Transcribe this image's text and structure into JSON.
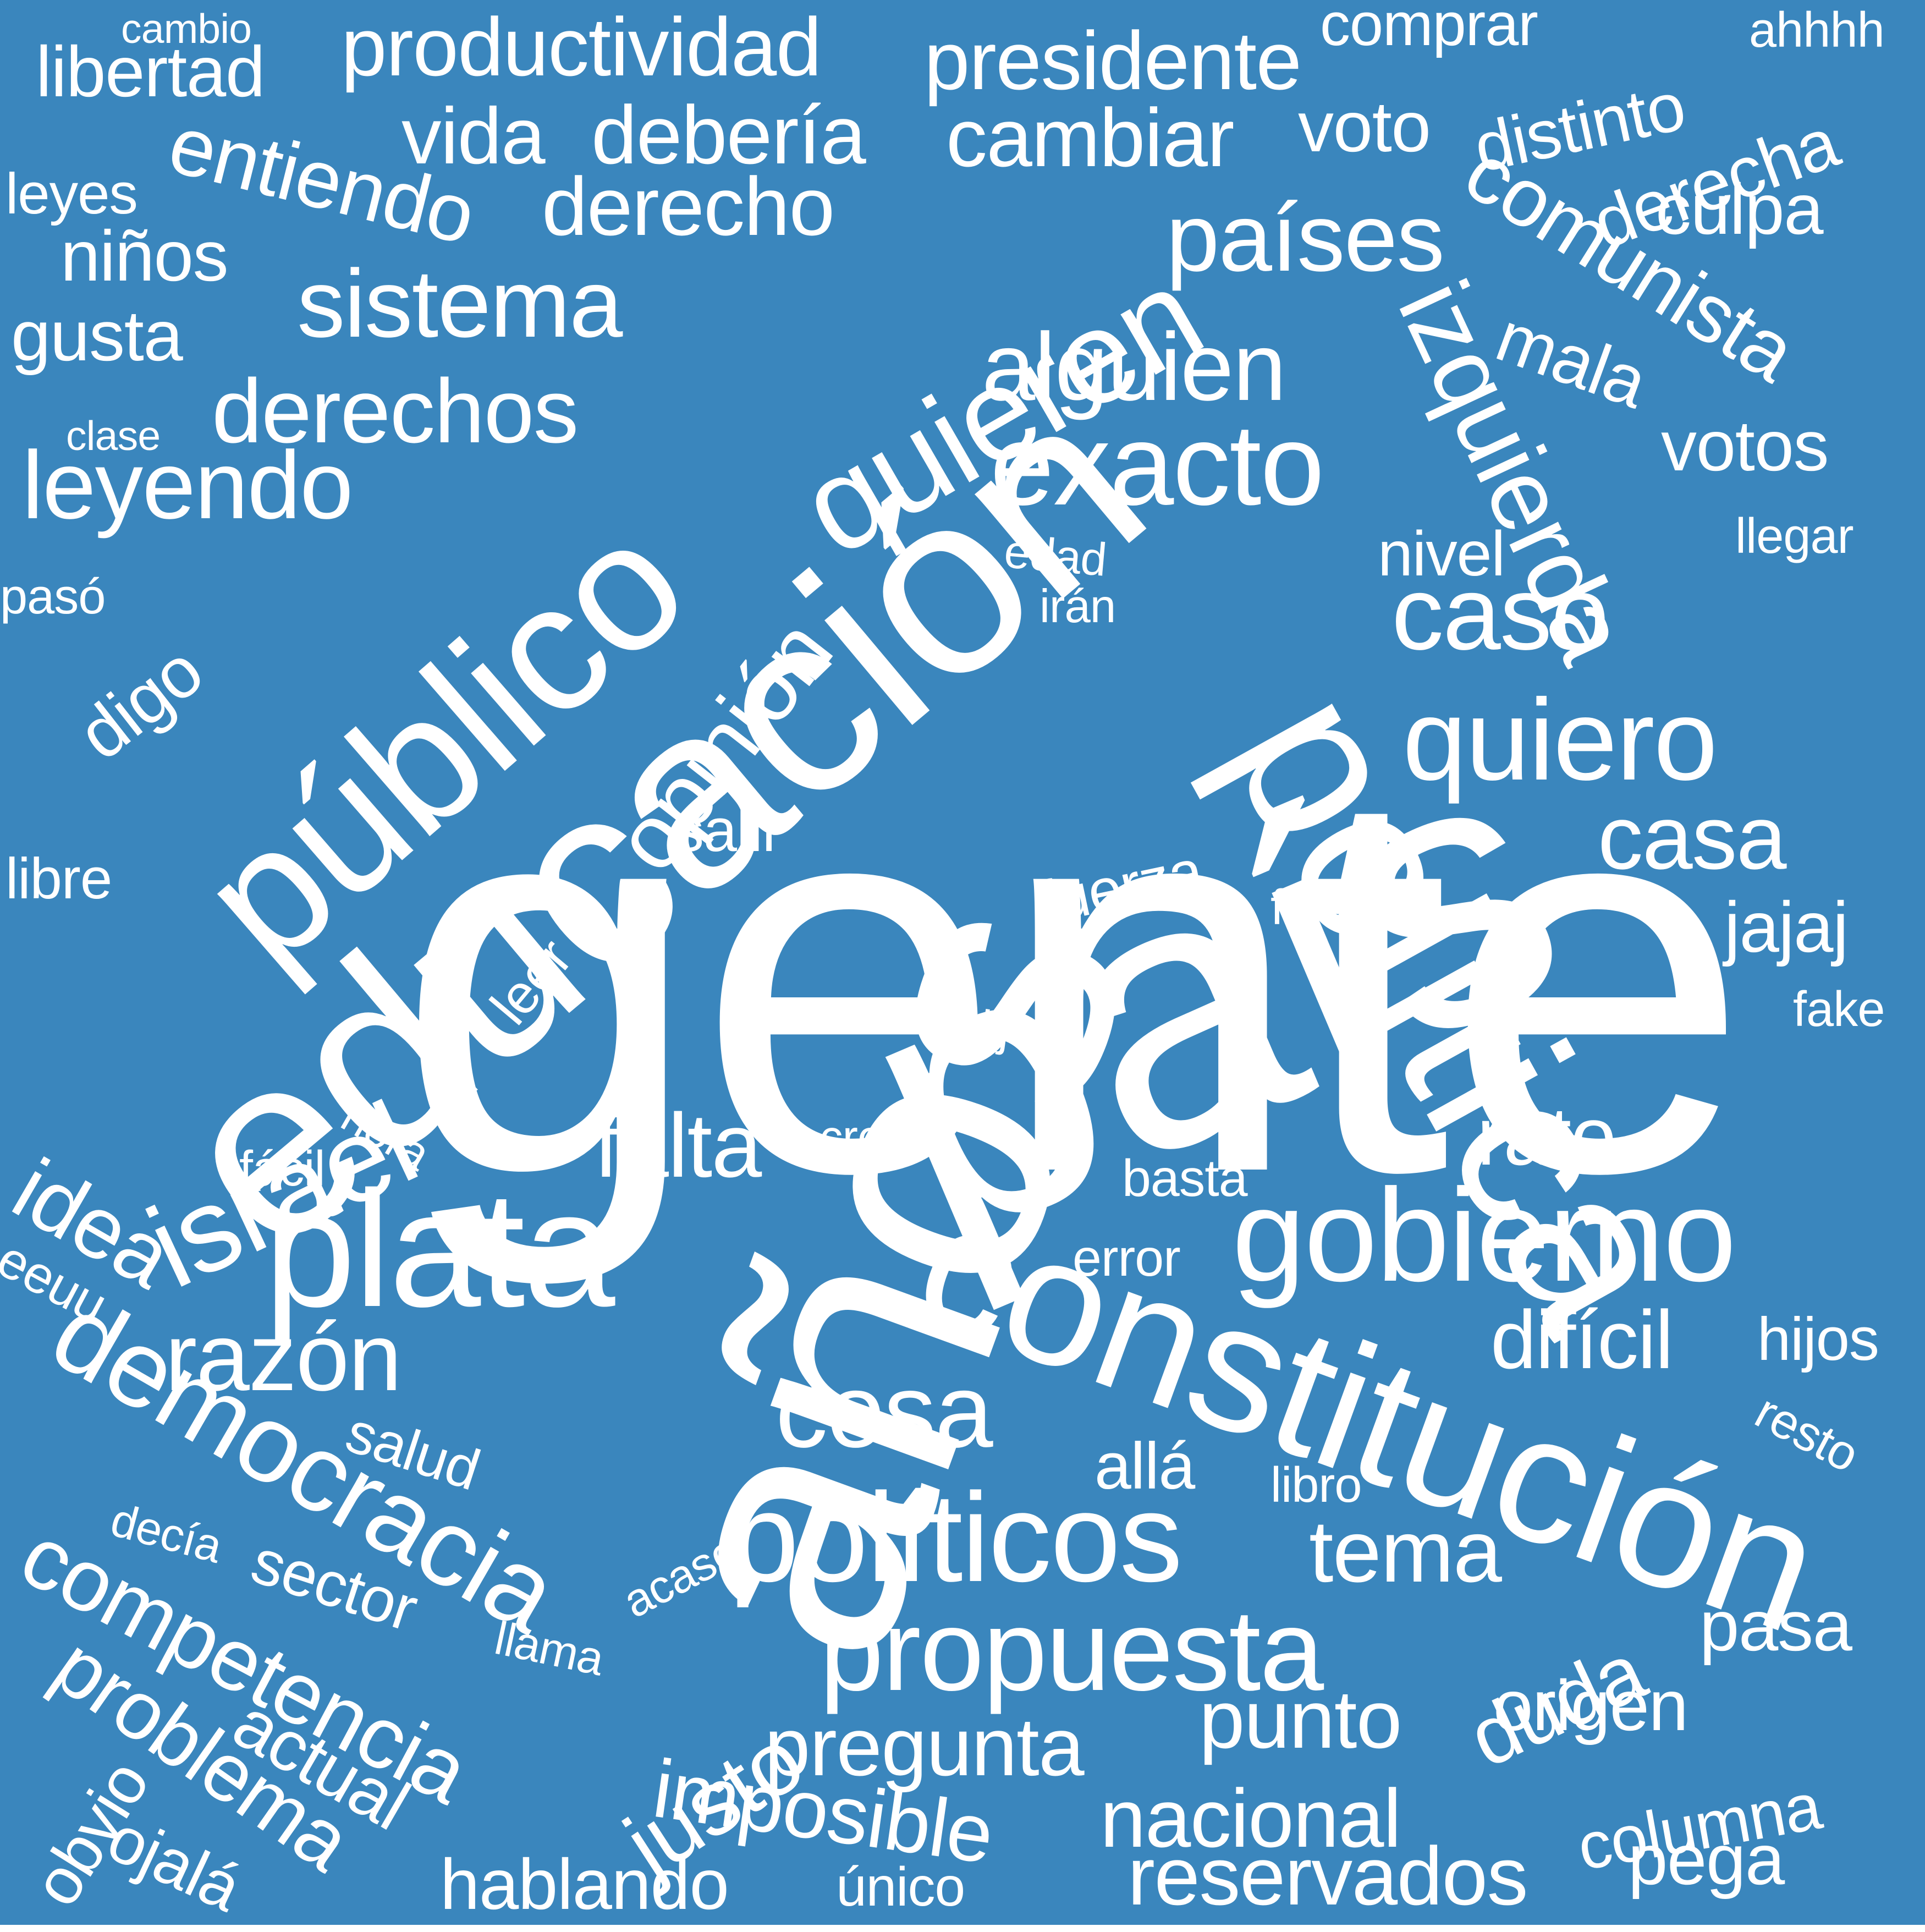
{
  "colors": {
    "background": "#3a86bd",
    "text": "#ffffff"
  },
  "words": [
    {
      "text": "gente"
    },
    {
      "text": "país"
    },
    {
      "text": "años"
    },
    {
      "text": "educación"
    },
    {
      "text": "política"
    },
    {
      "text": "público"
    },
    {
      "text": "constitución"
    },
    {
      "text": "plata"
    },
    {
      "text": "gobierno"
    },
    {
      "text": "quieren"
    },
    {
      "text": "israel"
    },
    {
      "text": "democracia"
    },
    {
      "text": "políticos"
    },
    {
      "text": "exacto"
    },
    {
      "text": "propuesta"
    },
    {
      "text": "quiero"
    },
    {
      "text": "caso"
    },
    {
      "text": "cosa"
    },
    {
      "text": "izquierda"
    },
    {
      "text": "opinión"
    },
    {
      "text": "alguien"
    },
    {
      "text": "leyendo"
    },
    {
      "text": "derechos"
    },
    {
      "text": "sistema"
    },
    {
      "text": "países"
    },
    {
      "text": "competencia"
    },
    {
      "text": "razón"
    },
    {
      "text": "falta"
    },
    {
      "text": "casa"
    },
    {
      "text": "rato"
    },
    {
      "text": "comunista"
    },
    {
      "text": "justo"
    },
    {
      "text": "difícil"
    },
    {
      "text": "tema"
    },
    {
      "text": "pregunta"
    },
    {
      "text": "punto"
    },
    {
      "text": "nacional"
    },
    {
      "text": "reservados"
    },
    {
      "text": "imposible"
    },
    {
      "text": "problema"
    },
    {
      "text": "duda"
    },
    {
      "text": "origen"
    },
    {
      "text": "columna"
    },
    {
      "text": "idea"
    },
    {
      "text": "derecho"
    },
    {
      "text": "productividad"
    },
    {
      "text": "presidente"
    },
    {
      "text": "debería"
    },
    {
      "text": "cambiar"
    },
    {
      "text": "entiendo"
    },
    {
      "text": "libertad"
    },
    {
      "text": "vida"
    },
    {
      "text": "voto"
    },
    {
      "text": "derecha"
    },
    {
      "text": "distinto"
    },
    {
      "text": "comprar"
    },
    {
      "text": "ahhhh"
    },
    {
      "text": "cambio"
    },
    {
      "text": "leyes"
    },
    {
      "text": "culpa"
    },
    {
      "text": "niños"
    },
    {
      "text": "gusta"
    },
    {
      "text": "mala"
    },
    {
      "text": "votos"
    },
    {
      "text": "clase"
    },
    {
      "text": "nivel"
    },
    {
      "text": "llegar"
    },
    {
      "text": "edad"
    },
    {
      "text": "irán"
    },
    {
      "text": "pasó"
    },
    {
      "text": "digo"
    },
    {
      "text": "salir"
    },
    {
      "text": "fuerza"
    },
    {
      "text": "libre"
    },
    {
      "text": "leer"
    },
    {
      "text": "feliz"
    },
    {
      "text": "jajaj"
    },
    {
      "text": "fake"
    },
    {
      "text": "dije"
    },
    {
      "text": "hora"
    },
    {
      "text": "cree"
    },
    {
      "text": "fácil"
    },
    {
      "text": "basta"
    },
    {
      "text": "eeuu"
    },
    {
      "text": "error"
    },
    {
      "text": "hijos"
    },
    {
      "text": "resto"
    },
    {
      "text": "salud"
    },
    {
      "text": "allá"
    },
    {
      "text": "libro"
    },
    {
      "text": "decía"
    },
    {
      "text": "acaso"
    },
    {
      "text": "sector"
    },
    {
      "text": "llama"
    },
    {
      "text": "pasa"
    },
    {
      "text": "actual"
    },
    {
      "text": "obvio"
    },
    {
      "text": "ojalá"
    },
    {
      "text": "hablando"
    },
    {
      "text": "único"
    },
    {
      "text": "pega"
    }
  ]
}
